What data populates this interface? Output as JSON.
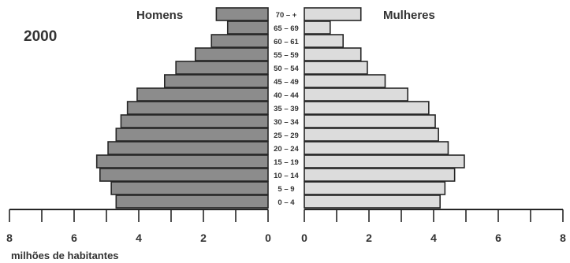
{
  "chart_data": {
    "type": "bar",
    "subtype": "population-pyramid",
    "title": "",
    "year_label": "2000",
    "left_series_label": "Homens",
    "right_series_label": "Mulheres",
    "xlabel": "milhões de habitantes",
    "ylabel": "",
    "xlim": [
      0,
      8
    ],
    "x_ticks": [
      8,
      6,
      4,
      2,
      0
    ],
    "x_ticks_right": [
      0,
      2,
      4,
      6,
      8
    ],
    "x_tick_labels": [
      "8",
      "6",
      "4",
      "2",
      "0"
    ],
    "x_tick_labels_right": [
      "0",
      "2",
      "4",
      "6",
      "8"
    ],
    "categories": [
      "70 – +",
      "65 – 69",
      "60 – 61",
      "55 – 59",
      "50 – 54",
      "45 – 49",
      "40 – 44",
      "35 – 39",
      "30 – 34",
      "25 – 29",
      "20 – 24",
      "15 – 19",
      "10 – 14",
      "5 – 9",
      "0 – 4"
    ],
    "series": [
      {
        "name": "Homens",
        "values": [
          1.6,
          1.25,
          1.75,
          2.25,
          2.85,
          3.2,
          4.05,
          4.35,
          4.55,
          4.7,
          4.95,
          5.3,
          5.2,
          4.85,
          4.7
        ]
      },
      {
        "name": "Mulheres",
        "values": [
          1.75,
          0.8,
          1.2,
          1.75,
          1.95,
          2.5,
          3.2,
          3.85,
          4.05,
          4.15,
          4.45,
          4.95,
          4.65,
          4.35,
          4.2
        ]
      }
    ],
    "colors": {
      "left_bar": "#8c8c8c",
      "right_bar": "#dcdcdc",
      "stroke": "#262626",
      "text": "#333333"
    },
    "grid": false
  }
}
